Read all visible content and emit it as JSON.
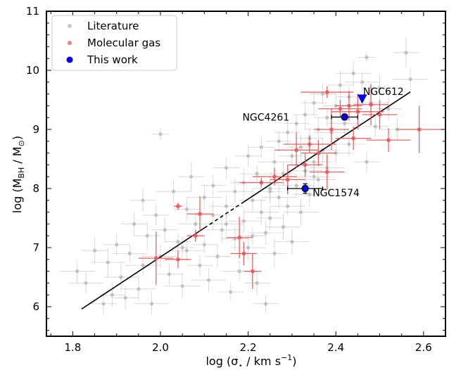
{
  "chart_data": {
    "type": "scatter",
    "xlabel_parts": {
      "pre": "log (σ",
      "sub": "⋆",
      "mid": " / km s",
      "sup": "−1",
      "post": ")"
    },
    "ylabel_parts": {
      "pre": "log (M",
      "sub1": "BH",
      "mid": " / M",
      "sub2": "⊙",
      "post": ")"
    },
    "xlim": [
      1.74,
      2.65
    ],
    "ylim": [
      5.5,
      11.0
    ],
    "xticks": [
      "1.8",
      "2.0",
      "2.2",
      "2.4",
      "2.6"
    ],
    "yticks": [
      "6",
      "7",
      "8",
      "9",
      "10",
      "11"
    ],
    "grid": false,
    "legend_position": "top-left",
    "legend": [
      {
        "label": "Literature",
        "color": "#c8c8c8",
        "marker": "circle-small"
      },
      {
        "label": "Molecular gas",
        "color": "#f08080",
        "marker": "circle-small"
      },
      {
        "label": "This work",
        "color": "#0000ee",
        "marker": "circle"
      }
    ],
    "fit_line": {
      "x1": 1.82,
      "x2": 2.57,
      "slope": 4.9,
      "intercept": -2.958,
      "dashed_from": 2.1,
      "dashed_to": 2.19
    },
    "series": [
      {
        "name": "Literature",
        "color": "#c0c0c0",
        "points": [
          [
            1.81,
            6.6,
            0.04,
            0.2
          ],
          [
            1.83,
            6.4,
            0.04,
            0.18
          ],
          [
            1.85,
            6.95,
            0.03,
            0.22
          ],
          [
            1.87,
            6.05,
            0.03,
            0.2
          ],
          [
            1.88,
            6.75,
            0.04,
            0.25
          ],
          [
            1.89,
            6.2,
            0.03,
            0.2
          ],
          [
            1.9,
            7.05,
            0.03,
            0.18
          ],
          [
            1.91,
            6.5,
            0.04,
            0.25
          ],
          [
            1.92,
            6.15,
            0.03,
            0.2
          ],
          [
            1.93,
            6.9,
            0.04,
            0.15
          ],
          [
            1.94,
            7.4,
            0.03,
            0.2
          ],
          [
            1.95,
            6.3,
            0.04,
            0.22
          ],
          [
            1.96,
            7.8,
            0.03,
            0.2
          ],
          [
            1.96,
            6.7,
            0.04,
            0.18
          ],
          [
            1.97,
            7.2,
            0.03,
            0.25
          ],
          [
            1.98,
            6.05,
            0.04,
            0.2
          ],
          [
            1.99,
            7.55,
            0.03,
            0.18
          ],
          [
            2.0,
            8.92,
            0.02,
            0.1
          ],
          [
            2.0,
            6.85,
            0.04,
            0.2
          ],
          [
            2.01,
            7.3,
            0.03,
            0.22
          ],
          [
            2.02,
            6.55,
            0.03,
            0.18
          ],
          [
            2.03,
            7.95,
            0.04,
            0.2
          ],
          [
            2.04,
            7.1,
            0.03,
            0.15
          ],
          [
            2.05,
            6.35,
            0.04,
            0.22
          ],
          [
            2.06,
            7.65,
            0.03,
            0.2
          ],
          [
            2.06,
            6.95,
            0.04,
            0.18
          ],
          [
            2.07,
            8.2,
            0.03,
            0.25
          ],
          [
            2.08,
            7.4,
            0.04,
            0.2
          ],
          [
            2.09,
            6.7,
            0.03,
            0.18
          ],
          [
            2.1,
            7.85,
            0.04,
            0.22
          ],
          [
            2.1,
            7.05,
            0.03,
            0.15
          ],
          [
            2.11,
            6.45,
            0.04,
            0.2
          ],
          [
            2.12,
            8.05,
            0.03,
            0.18
          ],
          [
            2.12,
            7.55,
            0.04,
            0.25
          ],
          [
            2.13,
            6.85,
            0.03,
            0.2
          ],
          [
            2.14,
            7.3,
            0.04,
            0.22
          ],
          [
            2.15,
            8.35,
            0.03,
            0.18
          ],
          [
            2.15,
            7.7,
            0.04,
            0.2
          ],
          [
            2.16,
            6.25,
            0.03,
            0.15
          ],
          [
            2.17,
            7.95,
            0.04,
            0.22
          ],
          [
            2.17,
            7.15,
            0.03,
            0.2
          ],
          [
            2.18,
            6.6,
            0.04,
            0.18
          ],
          [
            2.19,
            8.1,
            0.03,
            0.25
          ],
          [
            2.19,
            7.45,
            0.04,
            0.2
          ],
          [
            2.2,
            8.55,
            0.03,
            0.18
          ],
          [
            2.2,
            7.0,
            0.04,
            0.22
          ],
          [
            2.21,
            7.8,
            0.03,
            0.2
          ],
          [
            2.22,
            8.25,
            0.04,
            0.15
          ],
          [
            2.22,
            6.4,
            0.03,
            0.2
          ],
          [
            2.23,
            7.6,
            0.04,
            0.22
          ],
          [
            2.23,
            8.7,
            0.03,
            0.18
          ],
          [
            2.24,
            7.25,
            0.04,
            0.2
          ],
          [
            2.24,
            6.05,
            0.03,
            0.15
          ],
          [
            2.25,
            8.0,
            0.04,
            0.22
          ],
          [
            2.25,
            7.5,
            0.03,
            0.2
          ],
          [
            2.26,
            8.45,
            0.04,
            0.18
          ],
          [
            2.26,
            6.9,
            0.03,
            0.25
          ],
          [
            2.27,
            7.85,
            0.04,
            0.2
          ],
          [
            2.27,
            8.8,
            0.03,
            0.18
          ],
          [
            2.28,
            7.35,
            0.04,
            0.22
          ],
          [
            2.28,
            8.25,
            0.03,
            0.2
          ],
          [
            2.29,
            7.7,
            0.04,
            0.15
          ],
          [
            2.29,
            8.95,
            0.03,
            0.2
          ],
          [
            2.3,
            7.1,
            0.04,
            0.22
          ],
          [
            2.3,
            8.55,
            0.03,
            0.18
          ],
          [
            2.31,
            8.05,
            0.04,
            0.2
          ],
          [
            2.31,
            9.1,
            0.03,
            0.15
          ],
          [
            2.32,
            7.6,
            0.04,
            0.22
          ],
          [
            2.32,
            8.7,
            0.03,
            0.2
          ],
          [
            2.33,
            8.3,
            0.04,
            0.18
          ],
          [
            2.33,
            9.25,
            0.03,
            0.25
          ],
          [
            2.34,
            7.9,
            0.04,
            0.2
          ],
          [
            2.34,
            8.85,
            0.03,
            0.18
          ],
          [
            2.35,
            8.45,
            0.04,
            0.22
          ],
          [
            2.35,
            9.45,
            0.03,
            0.2
          ],
          [
            2.36,
            8.15,
            0.04,
            0.15
          ],
          [
            2.36,
            9.0,
            0.03,
            0.2
          ],
          [
            2.37,
            8.65,
            0.04,
            0.22
          ],
          [
            2.37,
            9.6,
            0.03,
            0.18
          ],
          [
            2.38,
            8.35,
            0.04,
            0.2
          ],
          [
            2.38,
            9.2,
            0.03,
            0.15
          ],
          [
            2.39,
            8.95,
            0.04,
            0.22
          ],
          [
            2.4,
            9.4,
            0.03,
            0.2
          ],
          [
            2.4,
            8.6,
            0.04,
            0.18
          ],
          [
            2.41,
            9.75,
            0.03,
            0.25
          ],
          [
            2.42,
            9.1,
            0.04,
            0.2
          ],
          [
            2.43,
            9.55,
            0.03,
            0.18
          ],
          [
            2.44,
            9.95,
            0.04,
            0.22
          ],
          [
            2.45,
            9.3,
            0.03,
            0.2
          ],
          [
            2.46,
            9.8,
            0.04,
            0.15
          ],
          [
            2.47,
            10.22,
            0.02,
            0.08
          ],
          [
            2.48,
            9.45,
            0.04,
            0.2
          ],
          [
            2.49,
            9.05,
            0.03,
            0.18
          ],
          [
            2.5,
            9.7,
            0.04,
            0.22
          ],
          [
            2.52,
            9.35,
            0.03,
            0.2
          ],
          [
            2.54,
            9.0,
            0.04,
            0.18
          ],
          [
            2.56,
            10.3,
            0.03,
            0.25
          ],
          [
            2.57,
            9.85,
            0.04,
            0.2
          ],
          [
            2.47,
            8.45,
            0.03,
            0.18
          ],
          [
            2.43,
            8.75,
            0.04,
            0.2
          ],
          [
            2.05,
            7.0,
            0.03,
            0.2
          ],
          [
            2.15,
            7.4,
            0.04,
            0.18
          ],
          [
            2.25,
            7.95,
            0.03,
            0.2
          ],
          [
            2.35,
            8.2,
            0.04,
            0.22
          ],
          [
            2.21,
            7.2,
            0.03,
            0.15
          ]
        ]
      },
      {
        "name": "Molecular gas",
        "color": "#e8474a",
        "points": [
          [
            1.99,
            6.82,
            0.04,
            0.45
          ],
          [
            2.04,
            7.7,
            0.01,
            0.06
          ],
          [
            2.04,
            6.8,
            0.03,
            0.15
          ],
          [
            2.08,
            7.2,
            0.02,
            0.1
          ],
          [
            2.09,
            7.57,
            0.03,
            0.3
          ],
          [
            2.18,
            7.17,
            0.03,
            0.35
          ],
          [
            2.19,
            6.9,
            0.03,
            0.2
          ],
          [
            2.21,
            6.6,
            0.02,
            0.3
          ],
          [
            2.23,
            8.1,
            0.05,
            0.08
          ],
          [
            2.26,
            8.2,
            0.05,
            0.15
          ],
          [
            2.29,
            8.15,
            0.04,
            0.25
          ],
          [
            2.31,
            8.65,
            0.05,
            0.3
          ],
          [
            2.33,
            8.4,
            0.04,
            0.2
          ],
          [
            2.34,
            8.75,
            0.06,
            0.15
          ],
          [
            2.36,
            8.6,
            0.04,
            0.22
          ],
          [
            2.38,
            8.28,
            0.04,
            0.3
          ],
          [
            2.38,
            9.63,
            0.06,
            0.1
          ],
          [
            2.39,
            9.0,
            0.04,
            0.35
          ],
          [
            2.41,
            9.35,
            0.05,
            0.15
          ],
          [
            2.43,
            9.4,
            0.03,
            0.25
          ],
          [
            2.44,
            8.85,
            0.04,
            0.2
          ],
          [
            2.45,
            9.3,
            0.06,
            0.3
          ],
          [
            2.48,
            9.42,
            0.04,
            0.35
          ],
          [
            2.5,
            9.25,
            0.04,
            0.25
          ],
          [
            2.52,
            8.82,
            0.05,
            0.2
          ],
          [
            2.59,
            9.0,
            0.05,
            0.4
          ]
        ]
      },
      {
        "name": "This work",
        "color": "#0000ee",
        "points": [
          [
            2.42,
            9.21,
            0.03,
            0.05
          ],
          [
            2.33,
            8.0,
            0.04,
            0.08
          ]
        ]
      }
    ],
    "upper_limit": {
      "x": 2.46,
      "y": 9.52,
      "color": "#0000ee"
    },
    "annotations": [
      {
        "text": "NGC612",
        "x": 2.462,
        "y": 9.64
      },
      {
        "text": "NGC4261",
        "x": 2.294,
        "y": 9.21
      },
      {
        "text": "NGC1574",
        "x": 2.347,
        "y": 7.93
      }
    ]
  }
}
